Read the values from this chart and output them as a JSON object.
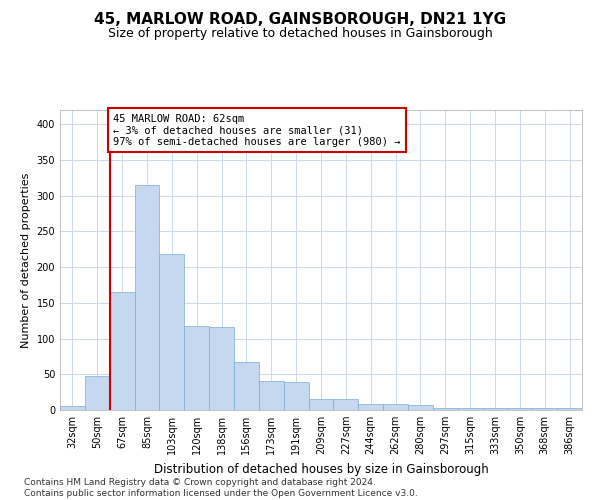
{
  "title": "45, MARLOW ROAD, GAINSBOROUGH, DN21 1YG",
  "subtitle": "Size of property relative to detached houses in Gainsborough",
  "xlabel": "Distribution of detached houses by size in Gainsborough",
  "ylabel": "Number of detached properties",
  "categories": [
    "32sqm",
    "50sqm",
    "67sqm",
    "85sqm",
    "103sqm",
    "120sqm",
    "138sqm",
    "156sqm",
    "173sqm",
    "191sqm",
    "209sqm",
    "227sqm",
    "244sqm",
    "262sqm",
    "280sqm",
    "297sqm",
    "315sqm",
    "333sqm",
    "350sqm",
    "368sqm",
    "386sqm"
  ],
  "values": [
    5,
    47,
    165,
    315,
    218,
    117,
    116,
    67,
    40,
    39,
    15,
    15,
    8,
    8,
    7,
    3,
    3,
    3,
    3,
    3,
    3
  ],
  "bar_color": "#c5d8ef",
  "bar_edge_color": "#7aafd4",
  "vline_color": "#cc0000",
  "vline_x": 1.5,
  "annotation_line1": "45 MARLOW ROAD: 62sqm",
  "annotation_line2": "← 3% of detached houses are smaller (31)",
  "annotation_line3": "97% of semi-detached houses are larger (980) →",
  "annotation_box_edge_color": "#cc0000",
  "ylim": [
    0,
    420
  ],
  "yticks": [
    0,
    50,
    100,
    150,
    200,
    250,
    300,
    350,
    400
  ],
  "footnote": "Contains HM Land Registry data © Crown copyright and database right 2024.\nContains public sector information licensed under the Open Government Licence v3.0.",
  "title_fontsize": 11,
  "subtitle_fontsize": 9,
  "xlabel_fontsize": 8.5,
  "ylabel_fontsize": 8,
  "tick_fontsize": 7,
  "annotation_fontsize": 7.5,
  "footnote_fontsize": 6.5,
  "background_color": "#ffffff",
  "grid_color": "#ccd9e8"
}
